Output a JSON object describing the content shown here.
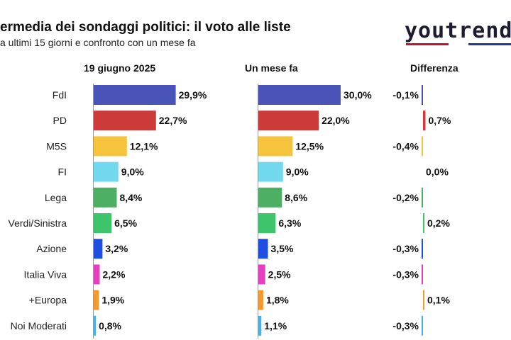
{
  "title": "ermedia dei sondaggi politici: il voto alle liste",
  "subtitle": "a ultimi 15 giorni e confronto con un mese fa",
  "logo": "youtrend",
  "logo_colors": [
    "#c8102e",
    "#ffffff",
    "#1f3a93"
  ],
  "columns": {
    "current": "19 giugno 2025",
    "previous": "Un mese fa",
    "difference": "Differenza"
  },
  "chart_data": {
    "type": "bar",
    "orientation": "horizontal",
    "categories": [
      "FdI",
      "PD",
      "M5S",
      "FI",
      "Lega",
      "Verdi/Sinistra",
      "Azione",
      "Italia Viva",
      "+Europa",
      "Noi Moderati"
    ],
    "colors": [
      "#4a54b8",
      "#cc3a3a",
      "#f6c33c",
      "#72d8ee",
      "#4caf64",
      "#3ec46a",
      "#1f4ee0",
      "#e63fbf",
      "#f49a30",
      "#46b2e8"
    ],
    "series": [
      {
        "name": "19 giugno 2025",
        "values": [
          29.9,
          22.7,
          12.1,
          9.0,
          8.4,
          6.5,
          3.2,
          2.2,
          1.9,
          0.8
        ],
        "labels": [
          "29,9%",
          "22,7%",
          "12,1%",
          "9,0%",
          "8,4%",
          "6,5%",
          "3,2%",
          "2,2%",
          "1,9%",
          "0,8%"
        ]
      },
      {
        "name": "Un mese fa",
        "values": [
          30.0,
          22.0,
          12.5,
          9.0,
          8.6,
          6.3,
          3.5,
          2.5,
          1.8,
          1.1
        ],
        "labels": [
          "30,0%",
          "22,0%",
          "12,5%",
          "9,0%",
          "8,6%",
          "6,3%",
          "3,5%",
          "2,5%",
          "1,8%",
          "1,1%"
        ]
      },
      {
        "name": "Differenza",
        "values": [
          -0.1,
          0.7,
          -0.4,
          0.0,
          -0.2,
          0.2,
          -0.3,
          -0.3,
          0.1,
          -0.3
        ],
        "labels": [
          "-0,1%",
          "0,7%",
          "-0,4%",
          "0,0%",
          "-0,2%",
          "0,2%",
          "-0,3%",
          "-0,3%",
          "0,1%",
          "-0,3%"
        ]
      }
    ],
    "grid": false,
    "legend": "none"
  }
}
